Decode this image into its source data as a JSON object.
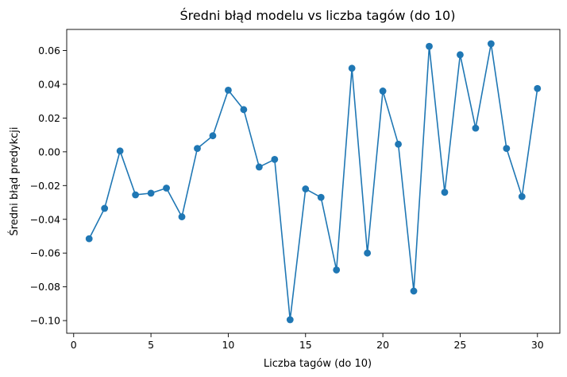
{
  "chart_data": {
    "type": "line",
    "title": "Średni błąd modelu vs liczba tagów (do 10)",
    "xlabel": "Liczba tagów (do 10)",
    "ylabel": "Średni błąd predykcji",
    "xlim": [
      -0.45,
      31.45
    ],
    "ylim": [
      -0.1075,
      0.0725
    ],
    "xticks": [
      0,
      5,
      10,
      15,
      20,
      25,
      30
    ],
    "xtick_labels": [
      "0",
      "5",
      "10",
      "15",
      "20",
      "25",
      "30"
    ],
    "yticks": [
      -0.1,
      -0.08,
      -0.06,
      -0.04,
      -0.02,
      0.0,
      0.02,
      0.04,
      0.06
    ],
    "ytick_labels": [
      "−0.10",
      "−0.08",
      "−0.06",
      "−0.04",
      "−0.02",
      "0.00",
      "0.02",
      "0.04",
      "0.06"
    ],
    "grid": false,
    "series": [
      {
        "color": "#1f77b4",
        "marker": "circle",
        "x": [
          1,
          2,
          3,
          4,
          5,
          6,
          7,
          8,
          9,
          10,
          11,
          12,
          13,
          14,
          15,
          16,
          17,
          18,
          19,
          20,
          21,
          22,
          23,
          24,
          25,
          26,
          27,
          28,
          29,
          30
        ],
        "y": [
          -0.0515,
          -0.0335,
          0.0005,
          -0.0255,
          -0.0245,
          -0.0215,
          -0.0385,
          0.002,
          0.0095,
          0.0365,
          0.025,
          -0.009,
          -0.0045,
          -0.0995,
          -0.022,
          -0.027,
          -0.07,
          0.0495,
          -0.06,
          0.036,
          0.0045,
          -0.0825,
          0.0625,
          -0.024,
          0.0575,
          0.014,
          0.064,
          0.002,
          -0.0265,
          0.0375
        ]
      }
    ]
  }
}
